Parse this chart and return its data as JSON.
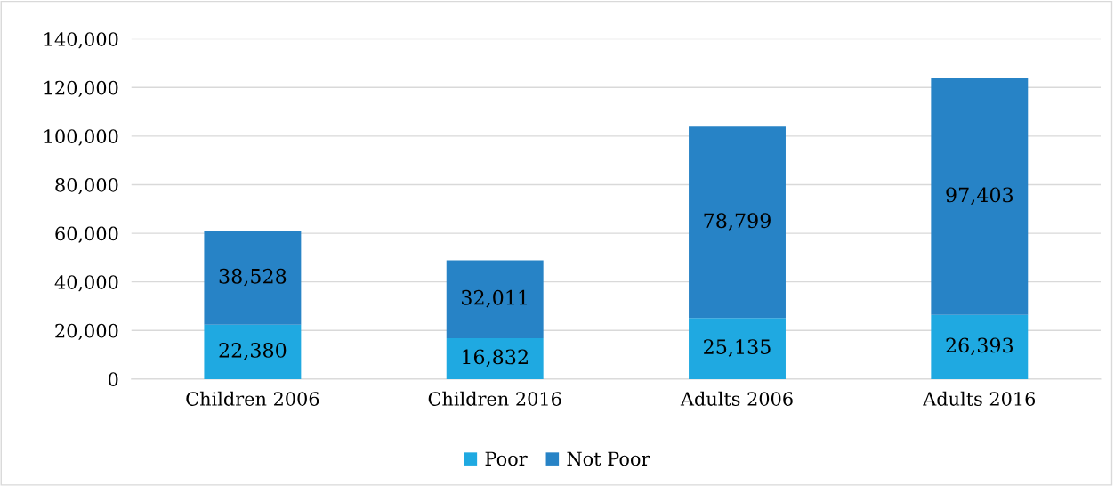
{
  "chart_data": {
    "type": "bar",
    "stacked": true,
    "categories": [
      "Children 2006",
      "Children 2016",
      "Adults 2006",
      "Adults 2016"
    ],
    "series": [
      {
        "name": "Poor",
        "color": "#1fa9e1",
        "values": [
          22380,
          16832,
          25135,
          26393
        ],
        "value_labels": [
          "22,380",
          "16,832",
          "25,135",
          "26,393"
        ]
      },
      {
        "name": "Not Poor",
        "color": "#2783c6",
        "values": [
          38528,
          32011,
          78799,
          97403
        ],
        "value_labels": [
          "38,528",
          "32,011",
          "78,799",
          "97,403"
        ]
      }
    ],
    "ylim": [
      0,
      140000
    ],
    "yticks": [
      {
        "value": 0,
        "label": "0"
      },
      {
        "value": 20000,
        "label": "20,000"
      },
      {
        "value": 40000,
        "label": "40,000"
      },
      {
        "value": 60000,
        "label": "60,000"
      },
      {
        "value": 80000,
        "label": "80,000"
      },
      {
        "value": 100000,
        "label": "100,000"
      },
      {
        "value": 120000,
        "label": "120,000"
      },
      {
        "value": 140000,
        "label": "140,000"
      }
    ],
    "grid": "y",
    "legend": "bottom"
  }
}
